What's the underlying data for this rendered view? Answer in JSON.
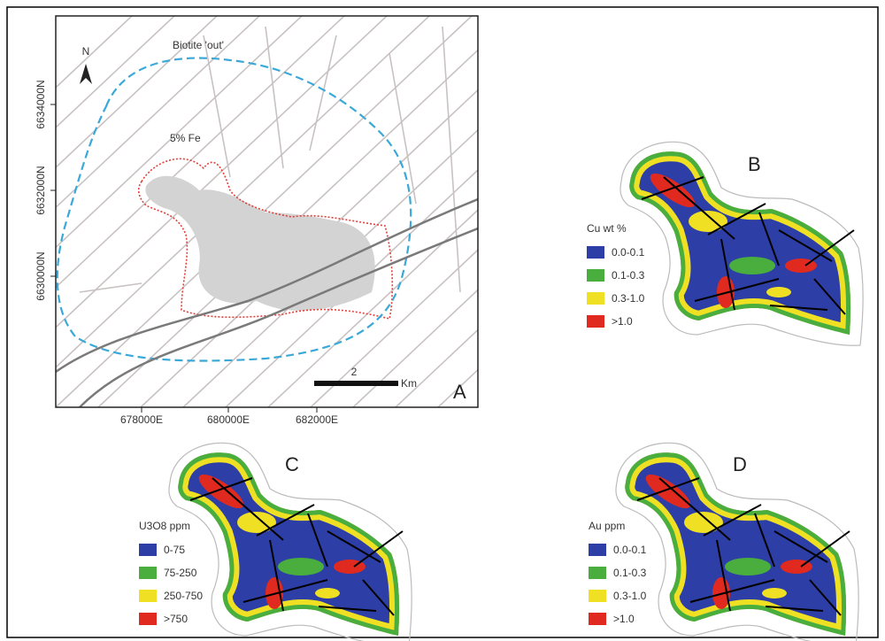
{
  "panels": {
    "a": {
      "label": "A",
      "north": "N",
      "biotite": "Biotite 'out'",
      "fe": "5% Fe",
      "yticks": [
        "6634000N",
        "6632000N",
        "6630000N"
      ],
      "xticks": [
        "678000E",
        "680000E",
        "682000E"
      ],
      "scale": "2",
      "scale_unit": "Km"
    },
    "b": {
      "label": "B",
      "legend_title": "Cu wt %",
      "legend": [
        "0.0-0.1",
        "0.1-0.3",
        "0.3-1.0",
        ">1.0"
      ]
    },
    "c": {
      "label": "C",
      "legend_title": "U3O8 ppm",
      "legend": [
        "0-75",
        "75-250",
        "250-750",
        ">750"
      ]
    },
    "d": {
      "label": "D",
      "legend_title": "Au ppm",
      "legend": [
        "0.0-0.1",
        "0.1-0.3",
        "0.3-1.0",
        ">1.0"
      ]
    }
  }
}
